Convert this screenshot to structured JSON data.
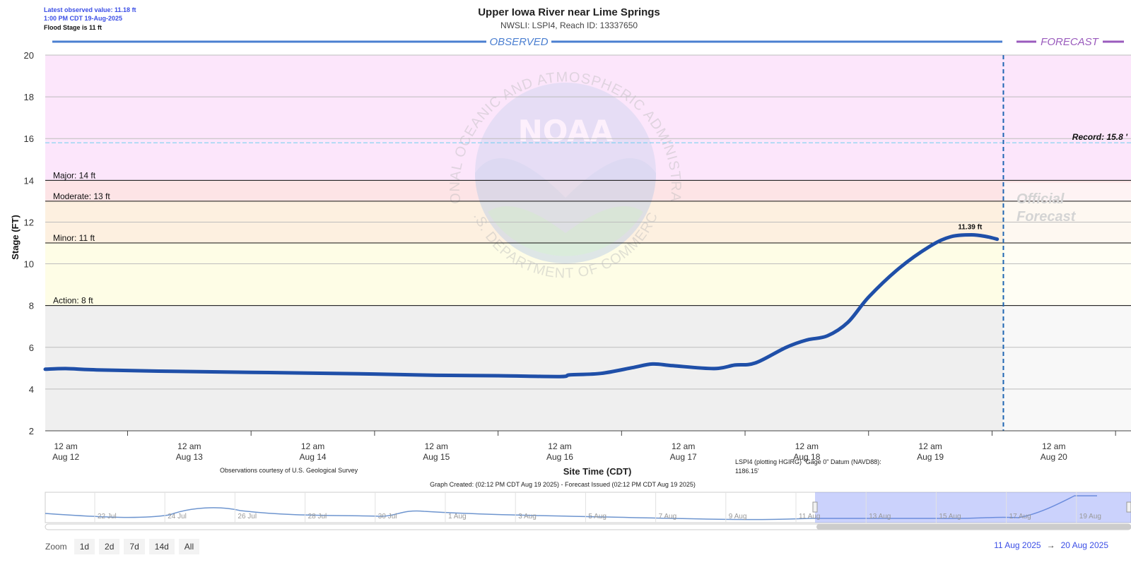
{
  "header": {
    "latest_value": "Latest observed value: 11.18 ft",
    "latest_time": "1:00 PM CDT 19-Aug-2025",
    "flood_stage": "Flood Stage is 11 ft",
    "title": "Upper Iowa River near Lime Springs",
    "subtitle": "NWSLI: LSPI4, Reach ID: 13337650"
  },
  "labels": {
    "observed": "OBSERVED",
    "forecast": "FORECAST",
    "official_line1": "Official",
    "official_line2": "Forecast",
    "peak": "11.39 ft",
    "usgs": "Observations courtesy of U.S. Geological Survey",
    "datum_line1": "LSPI4 (plotting HGIRG) \"Gage 0\" Datum (NAVD88):",
    "datum_line2": "1186.15'",
    "created": "Graph Created: (02:12 PM CDT Aug 19 2025) - Forecast Issued (02:12 PM CDT Aug 19 2025)"
  },
  "navigator": {
    "ticks": [
      "22 Jul",
      "24 Jul",
      "26 Jul",
      "28 Jul",
      "30 Jul",
      "1 Aug",
      "3 Aug",
      "5 Aug",
      "7 Aug",
      "9 Aug",
      "11 Aug",
      "13 Aug",
      "15 Aug",
      "17 Aug",
      "19 Aug"
    ]
  },
  "zoom": {
    "label": "Zoom",
    "buttons": [
      "1d",
      "2d",
      "7d",
      "14d",
      "All"
    ]
  },
  "range": {
    "from": "11 Aug 2025",
    "arrow": "→",
    "to": "20 Aug 2025"
  },
  "colors": {
    "major": "#fce6fb",
    "moderate": "#fde4e6",
    "minor": "#fdf0e0",
    "action": "#fefde6",
    "normal": "#efefef",
    "series": "#1f4fa8",
    "observed": "#4b7fd1",
    "forecast": "#9a5bbd"
  },
  "chart_data": {
    "type": "line",
    "title": "Upper Iowa River near Lime Springs",
    "subtitle": "NWSLI: LSPI4, Reach ID: 13337650",
    "xlabel": "Site Time (CDT)",
    "ylabel": "Stage (FT)",
    "ylim": [
      2,
      20
    ],
    "yticks": [
      2,
      4,
      6,
      8,
      10,
      12,
      14,
      16,
      18,
      20
    ],
    "xlim": [
      "2025-08-11T20:00",
      "2025-08-20T15:00"
    ],
    "xticks": [
      {
        "line1": "12 am",
        "line2": "Aug 12",
        "t": "2025-08-12T00:00"
      },
      {
        "line1": "12 am",
        "line2": "Aug 13",
        "t": "2025-08-13T00:00"
      },
      {
        "line1": "12 am",
        "line2": "Aug 14",
        "t": "2025-08-14T00:00"
      },
      {
        "line1": "12 am",
        "line2": "Aug 15",
        "t": "2025-08-15T00:00"
      },
      {
        "line1": "12 am",
        "line2": "Aug 16",
        "t": "2025-08-16T00:00"
      },
      {
        "line1": "12 am",
        "line2": "Aug 17",
        "t": "2025-08-17T00:00"
      },
      {
        "line1": "12 am",
        "line2": "Aug 18",
        "t": "2025-08-18T00:00"
      },
      {
        "line1": "12 am",
        "line2": "Aug 19",
        "t": "2025-08-19T00:00"
      },
      {
        "line1": "12 am",
        "line2": "Aug 20",
        "t": "2025-08-20T00:00"
      }
    ],
    "thresholds": [
      {
        "name": "Major",
        "label": "Major: 14 ft",
        "value": 14
      },
      {
        "name": "Moderate",
        "label": "Moderate: 13 ft",
        "value": 13
      },
      {
        "name": "Minor",
        "label": "Minor: 11 ft",
        "value": 11
      },
      {
        "name": "Action",
        "label": "Action: 8 ft",
        "value": 8
      }
    ],
    "record": {
      "label": "Record: 15.8 '",
      "value": 15.8
    },
    "forecast_start": "2025-08-19T14:12",
    "peak": {
      "t": "2025-08-19T08:00",
      "value": 11.39
    },
    "series": [
      {
        "values": [
          {
            "t": "2025-08-11T20:00",
            "y": 4.95
          },
          {
            "t": "2025-08-12T00:00",
            "y": 4.98
          },
          {
            "t": "2025-08-12T06:00",
            "y": 4.92
          },
          {
            "t": "2025-08-12T18:00",
            "y": 4.86
          },
          {
            "t": "2025-08-13T12:00",
            "y": 4.8
          },
          {
            "t": "2025-08-14T12:00",
            "y": 4.72
          },
          {
            "t": "2025-08-15T00:00",
            "y": 4.66
          },
          {
            "t": "2025-08-15T12:00",
            "y": 4.64
          },
          {
            "t": "2025-08-16T00:00",
            "y": 4.6
          },
          {
            "t": "2025-08-16T02:00",
            "y": 4.68
          },
          {
            "t": "2025-08-16T08:00",
            "y": 4.75
          },
          {
            "t": "2025-08-16T14:00",
            "y": 5.02
          },
          {
            "t": "2025-08-16T18:00",
            "y": 5.2
          },
          {
            "t": "2025-08-16T22:00",
            "y": 5.12
          },
          {
            "t": "2025-08-17T06:00",
            "y": 4.98
          },
          {
            "t": "2025-08-17T10:00",
            "y": 5.15
          },
          {
            "t": "2025-08-17T14:00",
            "y": 5.25
          },
          {
            "t": "2025-08-17T20:00",
            "y": 6.0
          },
          {
            "t": "2025-08-18T00:00",
            "y": 6.35
          },
          {
            "t": "2025-08-18T04:00",
            "y": 6.55
          },
          {
            "t": "2025-08-18T08:00",
            "y": 7.2
          },
          {
            "t": "2025-08-18T12:00",
            "y": 8.4
          },
          {
            "t": "2025-08-18T18:00",
            "y": 9.8
          },
          {
            "t": "2025-08-19T00:00",
            "y": 10.85
          },
          {
            "t": "2025-08-19T04:00",
            "y": 11.3
          },
          {
            "t": "2025-08-19T08:00",
            "y": 11.39
          },
          {
            "t": "2025-08-19T11:00",
            "y": 11.3
          },
          {
            "t": "2025-08-19T13:00",
            "y": 11.18
          }
        ]
      }
    ]
  }
}
